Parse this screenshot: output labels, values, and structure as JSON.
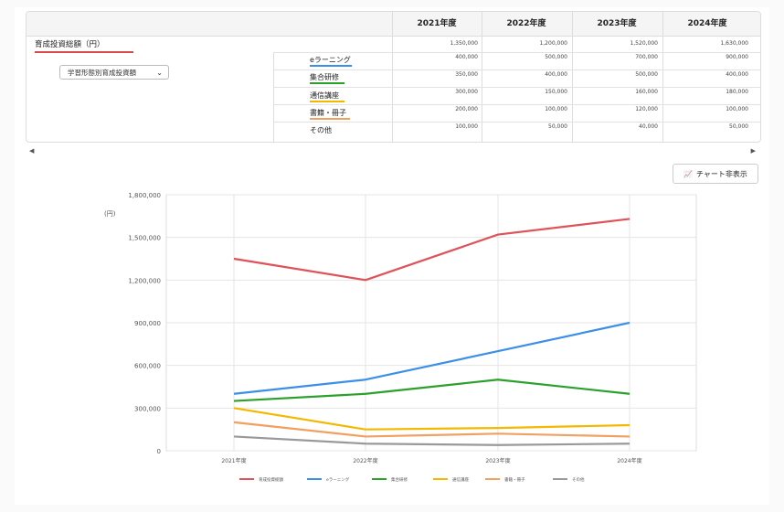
{
  "table": {
    "years": [
      "2021年度",
      "2022年度",
      "2023年度",
      "2024年度"
    ],
    "total_label": "育成投資総額（円）",
    "total_values": [
      "1,350,000",
      "1,200,000",
      "1,520,000",
      "1,630,000"
    ],
    "select_value": "学習形態別育成投資額",
    "rows": [
      {
        "label": "eラーニング",
        "color": "#3b8fe8",
        "values": [
          "400,000",
          "500,000",
          "700,000",
          "900,000"
        ]
      },
      {
        "label": "集合研修",
        "color": "#2ca02c",
        "values": [
          "350,000",
          "400,000",
          "500,000",
          "400,000"
        ]
      },
      {
        "label": "通信講座",
        "color": "#f5b800",
        "values": [
          "300,000",
          "150,000",
          "160,000",
          "180,000"
        ]
      },
      {
        "label": "書籍・冊子",
        "color": "#f0a060",
        "values": [
          "200,000",
          "100,000",
          "120,000",
          "100,000"
        ]
      },
      {
        "label": "その他",
        "color": "#999999",
        "values": [
          "100,000",
          "50,000",
          "40,000",
          "50,000"
        ]
      }
    ]
  },
  "chart_button_label": "チャート非表示",
  "chart_data": {
    "type": "line",
    "ylabel": "(円)",
    "ylim": [
      0,
      1800000
    ],
    "yticks": [
      "0",
      "300,000",
      "600,000",
      "900,000",
      "1,200,000",
      "1,500,000",
      "1,800,000"
    ],
    "categories": [
      "2021年度",
      "2022年度",
      "2023年度",
      "2024年度"
    ],
    "series": [
      {
        "name": "育成投資総額",
        "color": "#e0525a",
        "values": [
          1350000,
          1200000,
          1520000,
          1630000
        ]
      },
      {
        "name": "eラーニング",
        "color": "#3b8fe8",
        "values": [
          400000,
          500000,
          700000,
          900000
        ]
      },
      {
        "name": "集合研修",
        "color": "#2ca02c",
        "values": [
          350000,
          400000,
          500000,
          400000
        ]
      },
      {
        "name": "通信講座",
        "color": "#f5b800",
        "values": [
          300000,
          150000,
          160000,
          180000
        ]
      },
      {
        "name": "書籍・冊子",
        "color": "#f0a060",
        "values": [
          200000,
          100000,
          120000,
          100000
        ]
      },
      {
        "name": "その他",
        "color": "#999999",
        "values": [
          100000,
          50000,
          40000,
          50000
        ]
      }
    ],
    "legend": "bottom"
  }
}
